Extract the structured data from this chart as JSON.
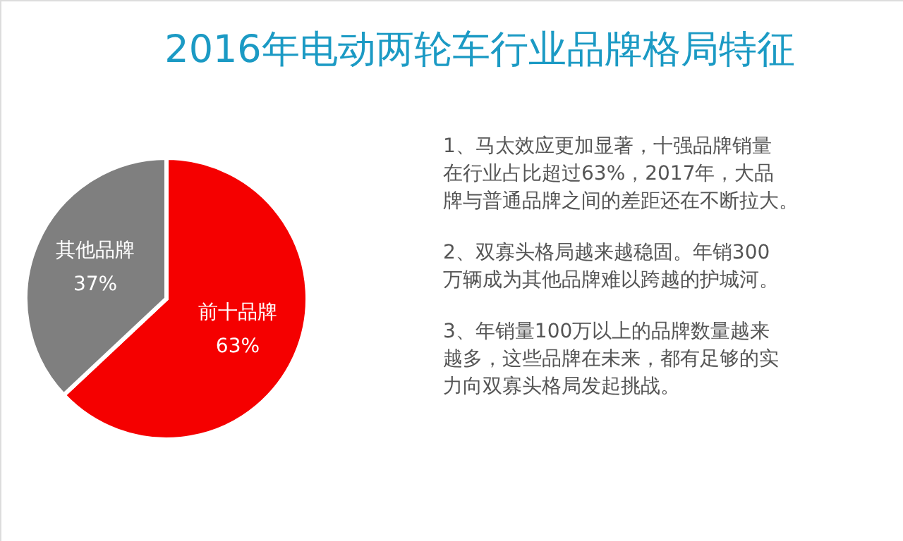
{
  "chart_data": {
    "type": "pie",
    "title": "2016年电动两轮车行业品牌格局特征",
    "categories": [
      "前十品牌",
      "其他品牌"
    ],
    "values": [
      63,
      37
    ],
    "value_labels": [
      "63%",
      "37%"
    ],
    "colors": [
      "#f50000",
      "#7f7f7f"
    ],
    "annotations": [
      "1、马太效应更加显著，十强品牌销量在行业占比超过63%，2017年，大品牌与普通品牌之间的差距还在不断拉大。",
      "2、双寡头格局越来越稳固。年销300万辆成为其他品牌难以跨越的护城河。",
      "3、年销量100万以上的品牌数量越来越多，这些品牌在未来，都有足够的实力向双寡头格局发起挑战。"
    ]
  }
}
